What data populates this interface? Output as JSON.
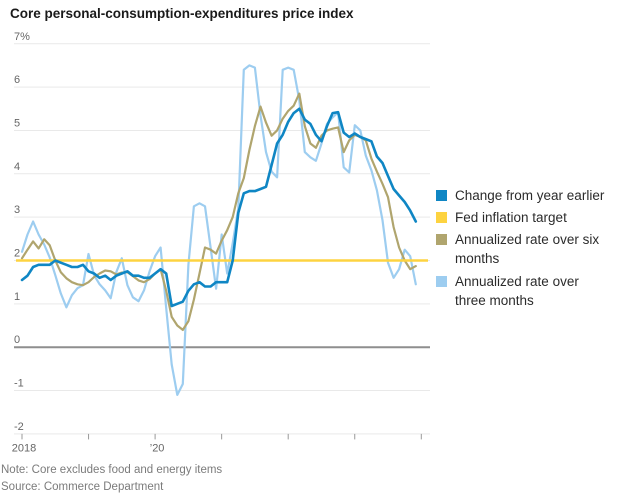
{
  "title": "Core personal-consumption-expenditures price index",
  "note": "Note: Core excludes food and energy items",
  "source": "Source: Commerce Department",
  "colors": {
    "yoy_blue": "#0f86c4",
    "fed_target_yellow": "#fdd340",
    "six_month_tan": "#b0a56e",
    "three_month_lightblue": "#9dcdf0",
    "gridline": "#e9e9e9",
    "zero_line": "#8e8e8e",
    "axis_text": "#666666",
    "tick_mark": "#999999"
  },
  "y_axis": {
    "tick_labels": [
      "7%",
      "6",
      "5",
      "4",
      "3",
      "2",
      "1",
      "0",
      "-1",
      "-2"
    ],
    "tick_values": [
      7,
      6,
      5,
      4,
      3,
      2,
      1,
      0,
      -1,
      -2
    ]
  },
  "x_axis": {
    "tick_years": [
      "2018",
      "2019",
      "2020",
      "2021",
      "2022",
      "2023",
      "2024"
    ],
    "visible_labels": [
      {
        "text": "2018",
        "year_index": 0
      },
      {
        "text": "’20",
        "year_index": 2
      }
    ]
  },
  "legend": {
    "items": [
      {
        "name": "change-from-year-earlier",
        "color": "#0f86c4",
        "label_lines": [
          "Change from year earlier"
        ]
      },
      {
        "name": "fed-inflation-target",
        "color": "#fdd340",
        "label_lines": [
          "Fed inflation target"
        ]
      },
      {
        "name": "annualized-six-months",
        "color": "#b0a56e",
        "label_lines": [
          "Annualized rate over six",
          "months"
        ]
      },
      {
        "name": "annualized-three-months",
        "color": "#9dcdf0",
        "label_lines": [
          "Annualized rate over",
          "three months"
        ]
      }
    ]
  },
  "chart_data": {
    "type": "line",
    "title": "Core personal-consumption-expenditures price index",
    "x_start": "2018-01",
    "x_end": "2023-12",
    "frequency": "monthly",
    "yunit": "%",
    "ylim": [
      -2,
      7
    ],
    "grid": "horizontal",
    "legend_position": "right",
    "series": [
      {
        "name": "Change from year earlier",
        "color": "#0f86c4",
        "stroke_width": 2.6,
        "values": [
          1.55,
          1.65,
          1.85,
          1.9,
          1.9,
          1.9,
          2.0,
          1.95,
          1.9,
          1.85,
          1.85,
          1.9,
          1.75,
          1.7,
          1.6,
          1.65,
          1.55,
          1.65,
          1.7,
          1.75,
          1.65,
          1.65,
          1.6,
          1.6,
          1.7,
          1.8,
          1.7,
          0.95,
          1.0,
          1.05,
          1.3,
          1.45,
          1.5,
          1.4,
          1.4,
          1.5,
          1.5,
          1.5,
          2.0,
          3.1,
          3.55,
          3.6,
          3.6,
          3.65,
          3.7,
          4.2,
          4.7,
          4.9,
          5.2,
          5.4,
          5.5,
          5.25,
          5.15,
          4.9,
          4.75,
          5.1,
          5.4,
          5.42,
          4.95,
          4.85,
          4.93,
          4.85,
          4.8,
          4.75,
          4.4,
          4.25,
          3.95,
          3.65,
          3.5,
          3.35,
          3.15,
          2.9
        ]
      },
      {
        "name": "Fed inflation target",
        "color": "#fdd340",
        "stroke_width": 2.5,
        "constant": 2.0
      },
      {
        "name": "Annualized rate over six months",
        "color": "#b0a56e",
        "stroke_width": 2.2,
        "values": [
          2.05,
          2.25,
          2.44,
          2.28,
          2.49,
          2.35,
          2.0,
          1.73,
          1.59,
          1.5,
          1.45,
          1.43,
          1.5,
          1.62,
          1.7,
          1.77,
          1.75,
          1.68,
          1.72,
          1.73,
          1.64,
          1.54,
          1.5,
          1.57,
          1.7,
          1.8,
          1.3,
          0.7,
          0.5,
          0.4,
          0.6,
          1.1,
          1.7,
          2.3,
          2.25,
          2.16,
          2.46,
          2.7,
          3.0,
          3.55,
          3.9,
          4.55,
          5.1,
          5.55,
          5.18,
          4.88,
          5.0,
          5.27,
          5.45,
          5.57,
          5.85,
          5.1,
          4.7,
          4.6,
          4.88,
          5.0,
          5.04,
          5.07,
          4.5,
          4.77,
          4.9,
          4.85,
          4.77,
          4.35,
          4.05,
          3.77,
          3.46,
          2.77,
          2.3,
          2.0,
          1.8,
          1.87
        ]
      },
      {
        "name": "Annualized rate over three months",
        "color": "#9dcdf0",
        "stroke_width": 2.2,
        "values": [
          2.2,
          2.6,
          2.9,
          2.6,
          2.37,
          2.07,
          1.66,
          1.24,
          0.92,
          1.2,
          1.36,
          1.43,
          2.15,
          1.66,
          1.45,
          1.31,
          1.13,
          1.73,
          2.05,
          1.43,
          1.15,
          1.06,
          1.31,
          1.75,
          2.1,
          2.3,
          0.9,
          -0.4,
          -1.1,
          -0.85,
          1.9,
          3.25,
          3.32,
          3.25,
          2.3,
          1.35,
          2.6,
          1.7,
          2.4,
          3.2,
          6.4,
          6.5,
          6.45,
          5.35,
          4.5,
          4.05,
          3.92,
          6.4,
          6.45,
          6.4,
          5.7,
          4.5,
          4.38,
          4.3,
          4.7,
          5.15,
          5.3,
          5.42,
          4.15,
          4.03,
          5.12,
          5.0,
          4.42,
          4.08,
          3.62,
          2.93,
          1.95,
          1.6,
          1.8,
          2.25,
          2.1,
          1.45
        ]
      }
    ],
    "draw_order": [
      "Annualized rate over three months",
      "Annualized rate over six months",
      "Fed inflation target",
      "Change from year earlier"
    ]
  }
}
